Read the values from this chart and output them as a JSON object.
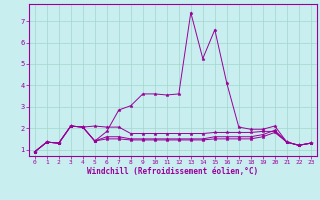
{
  "xlabel": "Windchill (Refroidissement éolien,°C)",
  "background_color": "#c8eef0",
  "grid_color": "#a0d8cc",
  "line_color": "#990099",
  "xlim": [
    -0.5,
    23.5
  ],
  "ylim": [
    0.7,
    7.8
  ],
  "xticks": [
    0,
    1,
    2,
    3,
    4,
    5,
    6,
    7,
    8,
    9,
    10,
    11,
    12,
    13,
    14,
    15,
    16,
    17,
    18,
    19,
    20,
    21,
    22,
    23
  ],
  "yticks": [
    1,
    2,
    3,
    4,
    5,
    6,
    7
  ],
  "series": [
    [
      0.9,
      1.35,
      1.3,
      2.1,
      2.05,
      1.4,
      1.85,
      2.85,
      3.05,
      3.6,
      3.6,
      3.55,
      3.6,
      7.4,
      5.25,
      6.6,
      4.1,
      2.05,
      1.95,
      1.95,
      2.1,
      1.35,
      1.2,
      1.3
    ],
    [
      0.9,
      1.35,
      1.3,
      2.1,
      2.05,
      2.1,
      2.05,
      2.05,
      1.75,
      1.75,
      1.75,
      1.75,
      1.75,
      1.75,
      1.75,
      1.8,
      1.8,
      1.8,
      1.8,
      1.85,
      1.85,
      1.35,
      1.2,
      1.3
    ],
    [
      0.9,
      1.35,
      1.3,
      2.1,
      2.05,
      1.4,
      1.6,
      1.6,
      1.5,
      1.5,
      1.5,
      1.5,
      1.5,
      1.5,
      1.5,
      1.6,
      1.6,
      1.6,
      1.6,
      1.7,
      1.9,
      1.35,
      1.2,
      1.3
    ],
    [
      0.9,
      1.35,
      1.3,
      2.1,
      2.05,
      1.4,
      1.5,
      1.5,
      1.45,
      1.45,
      1.45,
      1.45,
      1.45,
      1.45,
      1.45,
      1.5,
      1.5,
      1.5,
      1.5,
      1.6,
      1.8,
      1.35,
      1.2,
      1.3
    ]
  ]
}
